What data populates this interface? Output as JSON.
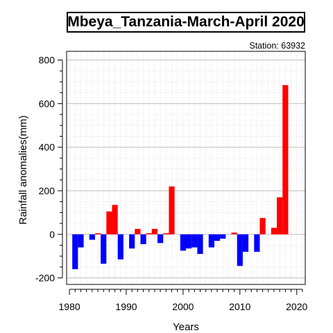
{
  "chart_data": {
    "type": "bar",
    "title": "Mbeya_Tanzania-March-April 2020",
    "subtitle": "Station: 63932",
    "xlabel": "Years",
    "ylabel": "Rainfall anomalies(mm)",
    "xlim": [
      1979.5,
      2021.5
    ],
    "ylim": [
      -230,
      840
    ],
    "x_ticks": [
      1980,
      1990,
      2000,
      2010,
      2020
    ],
    "y_ticks": [
      -200,
      0,
      200,
      400,
      600,
      800
    ],
    "grid": true,
    "colors": {
      "positive": "#ff0000",
      "negative": "#0000ff"
    },
    "x": [
      1981,
      1982,
      1983,
      1984,
      1985,
      1986,
      1987,
      1988,
      1989,
      1990,
      1991,
      1992,
      1993,
      1994,
      1995,
      1996,
      1997,
      1998,
      1999,
      2000,
      2001,
      2002,
      2003,
      2004,
      2005,
      2006,
      2007,
      2008,
      2009,
      2010,
      2011,
      2012,
      2013,
      2014,
      2015,
      2016,
      2017,
      2018,
      2019,
      2020
    ],
    "values": [
      -160,
      -60,
      0,
      -25,
      5,
      -135,
      105,
      135,
      -115,
      0,
      -65,
      25,
      -45,
      5,
      25,
      -40,
      5,
      220,
      0,
      -75,
      -65,
      -60,
      -90,
      0,
      -60,
      -30,
      -20,
      0,
      8,
      -145,
      -80,
      0,
      -80,
      75,
      0,
      30,
      170,
      685,
      0,
      0
    ]
  }
}
